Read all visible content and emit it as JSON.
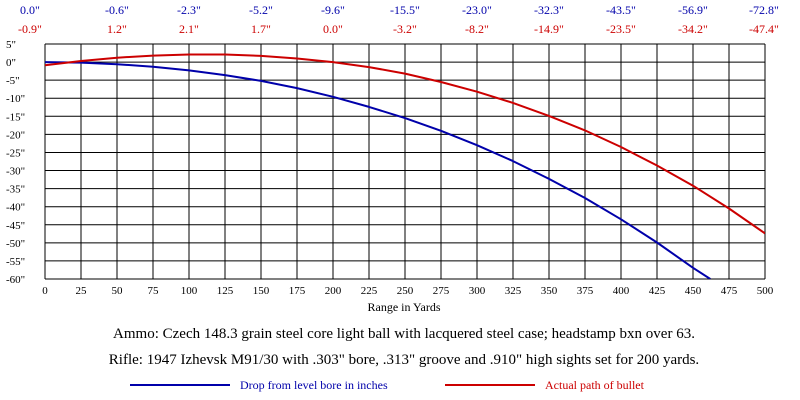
{
  "chart_data": {
    "type": "line",
    "xlabel": "Range in Yards",
    "x_ticks": [
      "0",
      "25",
      "50",
      "75",
      "100",
      "125",
      "150",
      "175",
      "200",
      "225",
      "250",
      "275",
      "300",
      "325",
      "350",
      "375",
      "400",
      "425",
      "450",
      "475",
      "500"
    ],
    "y_ticks": [
      "5\"",
      "0\"",
      "-5\"",
      "-10\"",
      "-15\"",
      "-20\"",
      "-25\"",
      "-30\"",
      "-35\"",
      "-40\"",
      "-45\"",
      "-50\"",
      "-55\"",
      "-60\""
    ],
    "xlim": [
      0,
      500
    ],
    "ylim": [
      -60,
      5
    ],
    "grid": true,
    "top_row_drop": [
      "0.0\"",
      "-0.6\"",
      "-2.3\"",
      "-5.2\"",
      "-9.6\"",
      "-15.5\"",
      "-23.0\"",
      "-32.3\"",
      "-43.5\"",
      "-56.9\"",
      "-72.8\""
    ],
    "top_row_path": [
      "-0.9\"",
      "1.2\"",
      "2.1\"",
      "1.7\"",
      "0.0\"",
      "-3.2\"",
      "-8.2\"",
      "-14.9\"",
      "-23.5\"",
      "-34.2\"",
      "-47.4\""
    ],
    "top_row_x": [
      0,
      50,
      100,
      150,
      200,
      250,
      300,
      350,
      400,
      450,
      500
    ],
    "series": [
      {
        "name": "Drop from level bore in inches",
        "color": "#0000aa",
        "x": [
          0,
          25,
          50,
          75,
          100,
          125,
          150,
          175,
          200,
          225,
          250,
          275,
          300,
          325,
          350,
          375,
          400,
          425,
          450,
          462
        ],
        "y": [
          0.0,
          -0.15,
          -0.6,
          -1.3,
          -2.3,
          -3.6,
          -5.2,
          -7.2,
          -9.6,
          -12.4,
          -15.5,
          -19.0,
          -23.0,
          -27.4,
          -32.3,
          -37.6,
          -43.5,
          -49.9,
          -56.9,
          -60.0
        ]
      },
      {
        "name": "Actual path of bullet",
        "color": "#cc0000",
        "x": [
          0,
          25,
          50,
          75,
          100,
          125,
          150,
          175,
          200,
          225,
          250,
          275,
          300,
          325,
          350,
          375,
          400,
          425,
          450,
          475,
          500
        ],
        "y": [
          -0.9,
          0.3,
          1.2,
          1.8,
          2.1,
          2.1,
          1.7,
          1.0,
          0.0,
          -1.4,
          -3.2,
          -5.5,
          -8.2,
          -11.3,
          -14.9,
          -18.9,
          -23.5,
          -28.6,
          -34.2,
          -40.5,
          -47.4
        ]
      }
    ]
  },
  "captions": {
    "ammo": "Ammo:  Czech 148.3 grain steel core light ball with lacquered steel case; headstamp bxn over 63.",
    "rifle": "Rifle:  1947 Izhevsk M91/30 with .303\" bore, .313\" groove and .910\" high sights set for 200 yards."
  }
}
